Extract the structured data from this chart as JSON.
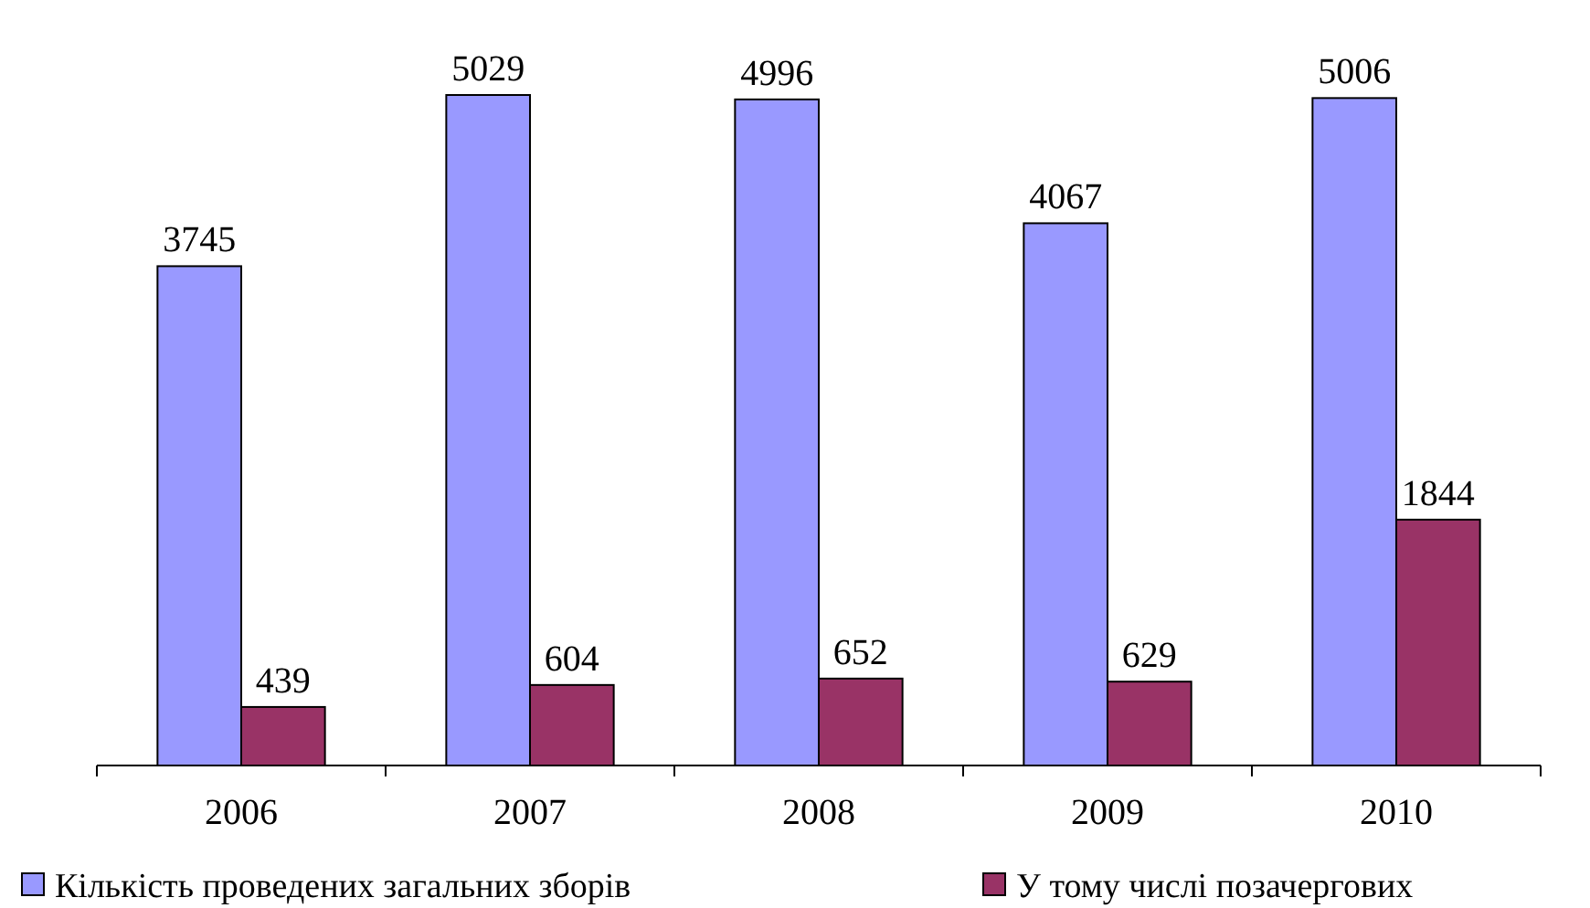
{
  "chart_data": {
    "type": "bar",
    "categories": [
      "2006",
      "2007",
      "2008",
      "2009",
      "2010"
    ],
    "series": [
      {
        "name": "Кількість проведених загальних зборів",
        "color": "#9999ff",
        "values": [
          3745,
          5029,
          4996,
          4067,
          5006
        ]
      },
      {
        "name": "У тому числі позачергових",
        "color": "#993366",
        "values": [
          439,
          604,
          652,
          629,
          1844
        ]
      }
    ],
    "data_labels": true,
    "legend": "bottom"
  }
}
